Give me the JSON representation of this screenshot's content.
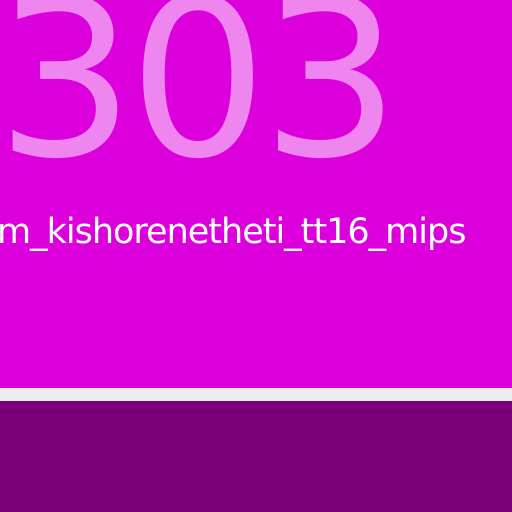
{
  "header": {
    "big_number": "303",
    "app_name": "m_kishorenetheti_tt16_mips"
  },
  "colors": {
    "panel_background": "#dc00dc",
    "big_number_color": "#ef86ef",
    "app_name_color": "#ffffff",
    "divider_color": "#ececec",
    "bottom_background": "#7a007a"
  }
}
